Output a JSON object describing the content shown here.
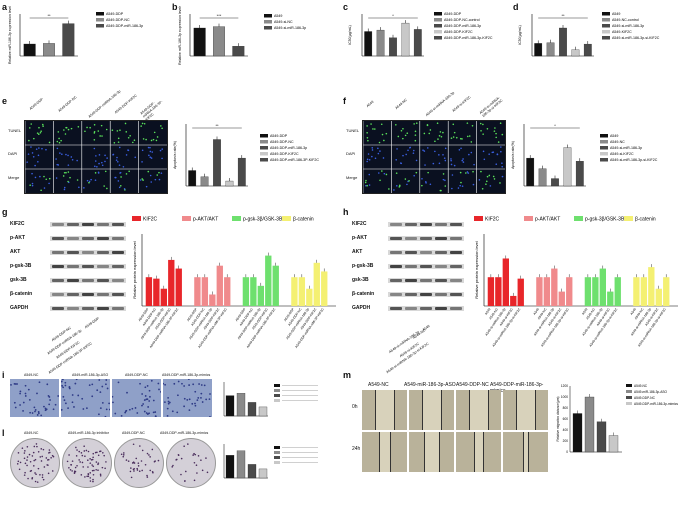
{
  "panels": {
    "a": {
      "label": "a",
      "ylabel": "Relative miR-186-3p expression level",
      "legend": [
        "A549-DDP",
        "A549-DDP-NC",
        "A549-DDP-miR-186-3p"
      ],
      "sig": "**"
    },
    "b": {
      "label": "b",
      "ylabel": "Relative miR-186-3p expression levels",
      "legend": [
        "A549",
        "A549-si-NC",
        "A549-si-miR-186-3p"
      ],
      "sig": "***"
    },
    "c": {
      "label": "c",
      "ylabel": "IC50(μg/mL)",
      "legend": [
        "A549-DDP",
        "A549-DDP-NC-control",
        "A549-DDP-miR-186-3p",
        "A549-DDP-KIF2C",
        "A549-DDP-miR-186-3p-KIF2C"
      ],
      "sig": "*"
    },
    "d": {
      "label": "d",
      "ylabel": "IC50(μg/mL)",
      "legend": [
        "A549",
        "A549-NC-control",
        "A549-si-miR-186-3p",
        "A549-KIF2C",
        "A549-si-miR-186-3p-si-KIF2C"
      ],
      "sig": "**"
    },
    "e": {
      "label": "e",
      "rows": [
        "TUNEL",
        "DAPI",
        "Merge"
      ],
      "cols": [
        "A549-DDP",
        "A549-DDP-NC",
        "A549-DDP-miRNA-186-3p",
        "A549-DDP-KIF2C",
        "A549-DDP-miRNA-186-3P-KIF2C"
      ],
      "ylabel": "Apoptosis rate(%)",
      "legend": [
        "A549-DDP",
        "A549-DDP-NC",
        "A549-DDP-miR-186-3p",
        "A549-DDP-KIF2C",
        "A549-DDP-miR-186-3P-KIF2C"
      ],
      "sig": "**"
    },
    "f": {
      "label": "f",
      "rows": [
        "TUNEL",
        "DAPI",
        "Merge"
      ],
      "cols": [
        "A549",
        "A549-NC",
        "A549-si-miRNA-186-3p",
        "A549-si-KIF2C",
        "A549-si-miRNA-186-3p-si-KIF2C"
      ],
      "ylabel": "Apoptosis rate(%)",
      "legend": [
        "A549",
        "A549-NC",
        "A549-si-miR-186-3p",
        "A549-si-KIF2C",
        "A549-si-miR-186-3p-si-KIF2C"
      ],
      "sig": "*"
    },
    "g": {
      "label": "g",
      "blots": [
        "KIF2C",
        "p-AKT",
        "AKT",
        "p-gsk-3B",
        "gsk-3B",
        "β-catenin",
        "GAPDH"
      ],
      "lanes": [
        "A549-DDP",
        "A549-DDP-NC",
        "A549-DDP-miRNA-186-3p",
        "A549-DDP-KIF2C",
        "A549-DDP-miRNA-186-3P-KIF2C"
      ],
      "ylabel": "Relative protein expression level",
      "legend": [
        "KIF2C",
        "p-AKT/AKT",
        "p-gsk-3β/GSK-3B",
        "β-catenin"
      ]
    },
    "h": {
      "label": "h",
      "blots": [
        "KIF2C",
        "p-AKT",
        "AKT",
        "p-gsk-3B",
        "gsk-3B",
        "β-catenin",
        "GAPDH"
      ],
      "lanes": [
        "A549",
        "A549-NC",
        "A549-si-miRNA-186-3p",
        "A549-si-KIF2C",
        "A549-si-miRNA-186-3p-si-KIF2C"
      ],
      "ylabel": "Relative protein expression level",
      "legend": [
        "KIF2C",
        "p-AKT/AKT",
        "p-gsk-3β/GSK-3B",
        "β-catenin"
      ]
    },
    "i": {
      "label": "i",
      "cols": [
        "A549-NC",
        "A549-miR-186-3p-ASO",
        "A549-DDP-NC",
        "A549-DDP-miR-186-3p-mimics"
      ]
    },
    "l": {
      "label": "l",
      "cols": [
        "A549-NC",
        "A549-miR-186-3p inhibitor",
        "A549-DDP-NC",
        "A549-DDP-miR-186-3p-mimics"
      ]
    },
    "m": {
      "label": "m",
      "cols": [
        "A549-NC",
        "A549-miR-186-3p-ASO",
        "A549-DDP-NC",
        "A549-DDP-miR-186-3p-mimics"
      ],
      "rows": [
        "0h",
        "24h"
      ],
      "ylabel": "Relative migration distance(μm)",
      "legend": [
        "A549-NC",
        "A549-miR-186-3p-ASO",
        "A549-DDP-NC",
        "A549-DDP-miR-186-3p-mimics"
      ],
      "yticks": [
        "0",
        "200",
        "400",
        "600",
        "800",
        "1000",
        "1200"
      ]
    }
  },
  "colors": {
    "black": "#111111",
    "grey": "#8a8a8a",
    "dark": "#4a4a4a",
    "light": "#c8c8c8",
    "red": "#e8262a",
    "pink": "#f08a8c",
    "green": "#6ee06e",
    "yellow": "#f4f072"
  },
  "chart_data": [
    {
      "type": "bar",
      "panel": "a",
      "categories": [
        "A549-DDP",
        "A549-DDP-NC",
        "A549-DDP-miR-186-3p"
      ],
      "values": [
        1.0,
        1.05,
        2.7
      ],
      "ylim": [
        0,
        3.5
      ]
    },
    {
      "type": "bar",
      "panel": "b",
      "categories": [
        "A549",
        "A549-si-NC",
        "A549-si-miR-186-3p"
      ],
      "values": [
        1.0,
        1.05,
        0.35
      ],
      "ylim": [
        0,
        1.5
      ]
    },
    {
      "type": "bar",
      "panel": "c",
      "categories": [
        "A549-DDP",
        "A549-DDP-NC-control",
        "A549-DDP-miR-186-3p",
        "A549-DDP-KIF2C",
        "A549-DDP-miR-186-3p-KIF2C"
      ],
      "values": [
        35,
        37,
        26,
        47,
        38
      ],
      "ylim": [
        0,
        60
      ]
    },
    {
      "type": "bar",
      "panel": "d",
      "categories": [
        "A549",
        "A549-NC-control",
        "A549-si-miR-186-3p",
        "A549-KIF2C",
        "A549-si-miR-186-3p-si-KIF2C"
      ],
      "values": [
        18,
        19,
        40,
        9,
        17
      ],
      "ylim": [
        0,
        60
      ]
    },
    {
      "type": "bar",
      "panel": "e",
      "categories": [
        "A549-DDP",
        "A549-DDP-NC",
        "A549-DDP-miR-186-3p",
        "A549-DDP-KIF2C",
        "A549-DDP-miR-186-3P-KIF2C"
      ],
      "values": [
        25,
        15,
        75,
        8,
        45
      ],
      "ylim": [
        0,
        100
      ]
    },
    {
      "type": "bar",
      "panel": "f",
      "categories": [
        "A549",
        "A549-NC",
        "A549-si-miR-186-3p",
        "A549-si-KIF2C",
        "A549-si-miR-186-3p-si-KIF2C"
      ],
      "values": [
        45,
        28,
        12,
        62,
        40
      ],
      "ylim": [
        0,
        100
      ]
    },
    {
      "type": "bar",
      "panel": "g",
      "series": [
        {
          "name": "KIF2C",
          "values": [
            1.0,
            0.95,
            0.6,
            1.6,
            1.3
          ]
        },
        {
          "name": "p-AKT/AKT",
          "values": [
            1.0,
            1.0,
            0.4,
            1.4,
            1.0
          ]
        },
        {
          "name": "p-gsk-3β/GSK-3B",
          "values": [
            1.0,
            1.0,
            0.7,
            1.75,
            1.4
          ]
        },
        {
          "name": "β-catenin",
          "values": [
            1.0,
            1.0,
            0.6,
            1.5,
            1.2
          ]
        }
      ],
      "ylim": [
        0,
        2.5
      ]
    },
    {
      "type": "bar",
      "panel": "h",
      "series": [
        {
          "name": "KIF2C",
          "values": [
            1.0,
            1.0,
            1.65,
            0.35,
            0.95
          ]
        },
        {
          "name": "p-AKT/AKT",
          "values": [
            1.0,
            1.0,
            1.3,
            0.5,
            1.0
          ]
        },
        {
          "name": "p-gsk-3β/GSK-3B",
          "values": [
            1.0,
            1.0,
            1.3,
            0.5,
            1.0
          ]
        },
        {
          "name": "β-catenin",
          "values": [
            1.0,
            1.0,
            1.35,
            0.6,
            1.0
          ]
        }
      ],
      "ylim": [
        0,
        2.5
      ]
    },
    {
      "type": "bar",
      "panel": "i",
      "values": [
        90,
        100,
        60,
        40
      ],
      "ylim": [
        0,
        150
      ]
    },
    {
      "type": "bar",
      "panel": "l",
      "values": [
        100,
        120,
        60,
        40
      ],
      "ylim": [
        0,
        150
      ]
    },
    {
      "type": "bar",
      "panel": "m",
      "categories": [
        "A549-NC",
        "A549-miR-186-3p-ASO",
        "A549-DDP-NC",
        "A549-DDP-miR-186-3p-mimics"
      ],
      "values": [
        700,
        1000,
        550,
        300
      ],
      "ylim": [
        0,
        1200
      ]
    }
  ]
}
